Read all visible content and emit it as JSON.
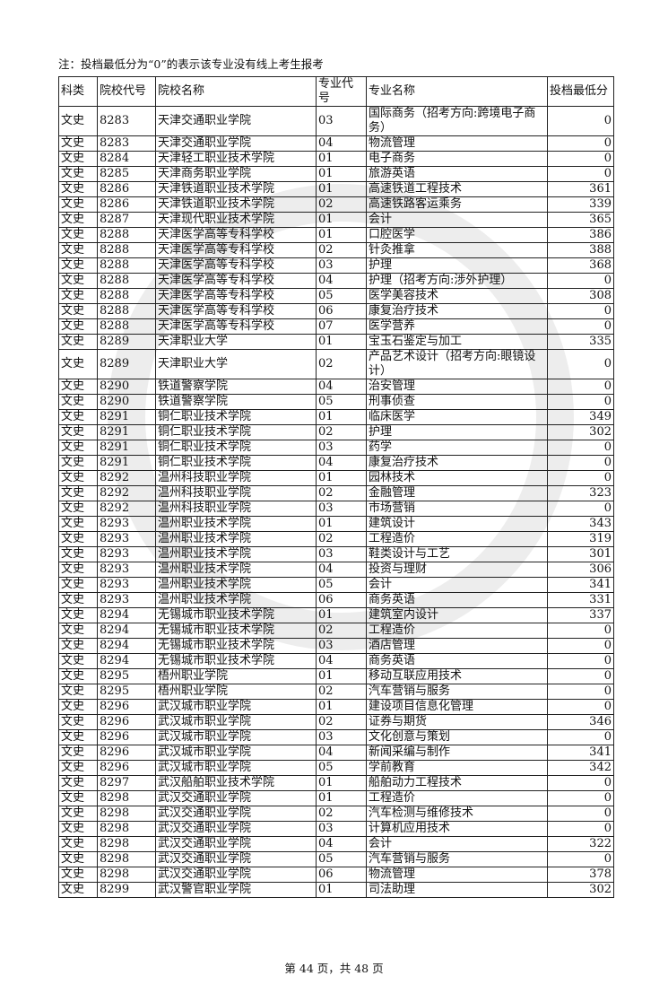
{
  "note": "注：投档最低分为“0”的表示该专业没有线上考生报考",
  "headers": [
    "科类",
    "院校代号",
    "院校名称",
    "专业代号",
    "专业名称",
    "投档最低分"
  ],
  "rows": [
    [
      "文史",
      "8283",
      "天津交通职业学院",
      "03",
      "国际商务（招考方向:跨境电子商务）",
      "0"
    ],
    [
      "文史",
      "8283",
      "天津交通职业学院",
      "04",
      "物流管理",
      "0"
    ],
    [
      "文史",
      "8284",
      "天津轻工职业技术学院",
      "01",
      "电子商务",
      "0"
    ],
    [
      "文史",
      "8285",
      "天津商务职业学院",
      "01",
      "旅游英语",
      "0"
    ],
    [
      "文史",
      "8286",
      "天津铁道职业技术学院",
      "01",
      "高速铁道工程技术",
      "361"
    ],
    [
      "文史",
      "8286",
      "天津铁道职业技术学院",
      "02",
      "高速铁路客运乘务",
      "339"
    ],
    [
      "文史",
      "8287",
      "天津现代职业技术学院",
      "01",
      "会计",
      "365"
    ],
    [
      "文史",
      "8288",
      "天津医学高等专科学校",
      "01",
      "口腔医学",
      "386"
    ],
    [
      "文史",
      "8288",
      "天津医学高等专科学校",
      "02",
      "针灸推拿",
      "388"
    ],
    [
      "文史",
      "8288",
      "天津医学高等专科学校",
      "03",
      "护理",
      "368"
    ],
    [
      "文史",
      "8288",
      "天津医学高等专科学校",
      "04",
      "护理（招考方向:涉外护理）",
      "0"
    ],
    [
      "文史",
      "8288",
      "天津医学高等专科学校",
      "05",
      "医学美容技术",
      "308"
    ],
    [
      "文史",
      "8288",
      "天津医学高等专科学校",
      "06",
      "康复治疗技术",
      "0"
    ],
    [
      "文史",
      "8288",
      "天津医学高等专科学校",
      "07",
      "医学营养",
      "0"
    ],
    [
      "文史",
      "8289",
      "天津职业大学",
      "01",
      "宝玉石鉴定与加工",
      "335"
    ],
    [
      "文史",
      "8289",
      "天津职业大学",
      "02",
      "产品艺术设计（招考方向:眼镜设计）",
      "0"
    ],
    [
      "文史",
      "8290",
      "铁道警察学院",
      "04",
      "治安管理",
      "0"
    ],
    [
      "文史",
      "8290",
      "铁道警察学院",
      "05",
      "刑事侦查",
      "0"
    ],
    [
      "文史",
      "8291",
      "铜仁职业技术学院",
      "01",
      "临床医学",
      "349"
    ],
    [
      "文史",
      "8291",
      "铜仁职业技术学院",
      "02",
      "护理",
      "302"
    ],
    [
      "文史",
      "8291",
      "铜仁职业技术学院",
      "03",
      "药学",
      "0"
    ],
    [
      "文史",
      "8291",
      "铜仁职业技术学院",
      "04",
      "康复治疗技术",
      "0"
    ],
    [
      "文史",
      "8292",
      "温州科技职业学院",
      "01",
      "园林技术",
      "0"
    ],
    [
      "文史",
      "8292",
      "温州科技职业学院",
      "02",
      "金融管理",
      "323"
    ],
    [
      "文史",
      "8292",
      "温州科技职业学院",
      "03",
      "市场营销",
      "0"
    ],
    [
      "文史",
      "8293",
      "温州职业技术学院",
      "01",
      "建筑设计",
      "343"
    ],
    [
      "文史",
      "8293",
      "温州职业技术学院",
      "02",
      "工程造价",
      "319"
    ],
    [
      "文史",
      "8293",
      "温州职业技术学院",
      "03",
      "鞋类设计与工艺",
      "301"
    ],
    [
      "文史",
      "8293",
      "温州职业技术学院",
      "04",
      "投资与理财",
      "306"
    ],
    [
      "文史",
      "8293",
      "温州职业技术学院",
      "05",
      "会计",
      "341"
    ],
    [
      "文史",
      "8293",
      "温州职业技术学院",
      "06",
      "商务英语",
      "331"
    ],
    [
      "文史",
      "8294",
      "无锡城市职业技术学院",
      "01",
      "建筑室内设计",
      "337"
    ],
    [
      "文史",
      "8294",
      "无锡城市职业技术学院",
      "02",
      "工程造价",
      "0"
    ],
    [
      "文史",
      "8294",
      "无锡城市职业技术学院",
      "03",
      "酒店管理",
      "0"
    ],
    [
      "文史",
      "8294",
      "无锡城市职业技术学院",
      "04",
      "商务英语",
      "0"
    ],
    [
      "文史",
      "8295",
      "梧州职业学院",
      "01",
      "移动互联应用技术",
      "0"
    ],
    [
      "文史",
      "8295",
      "梧州职业学院",
      "02",
      "汽车营销与服务",
      "0"
    ],
    [
      "文史",
      "8296",
      "武汉城市职业学院",
      "01",
      "建设项目信息化管理",
      "0"
    ],
    [
      "文史",
      "8296",
      "武汉城市职业学院",
      "02",
      "证券与期货",
      "346"
    ],
    [
      "文史",
      "8296",
      "武汉城市职业学院",
      "03",
      "文化创意与策划",
      "0"
    ],
    [
      "文史",
      "8296",
      "武汉城市职业学院",
      "04",
      "新闻采编与制作",
      "341"
    ],
    [
      "文史",
      "8296",
      "武汉城市职业学院",
      "05",
      "学前教育",
      "342"
    ],
    [
      "文史",
      "8297",
      "武汉船舶职业技术学院",
      "01",
      "船舶动力工程技术",
      "0"
    ],
    [
      "文史",
      "8298",
      "武汉交通职业学院",
      "01",
      "工程造价",
      "0"
    ],
    [
      "文史",
      "8298",
      "武汉交通职业学院",
      "02",
      "汽车检测与维修技术",
      "0"
    ],
    [
      "文史",
      "8298",
      "武汉交通职业学院",
      "03",
      "计算机应用技术",
      "0"
    ],
    [
      "文史",
      "8298",
      "武汉交通职业学院",
      "04",
      "会计",
      "322"
    ],
    [
      "文史",
      "8298",
      "武汉交通职业学院",
      "05",
      "汽车营销与服务",
      "0"
    ],
    [
      "文史",
      "8298",
      "武汉交通职业学院",
      "06",
      "物流管理",
      "378"
    ],
    [
      "文史",
      "8299",
      "武汉警官职业学院",
      "01",
      "司法助理",
      "302"
    ]
  ],
  "footer": "第 44 页，共 48 页"
}
